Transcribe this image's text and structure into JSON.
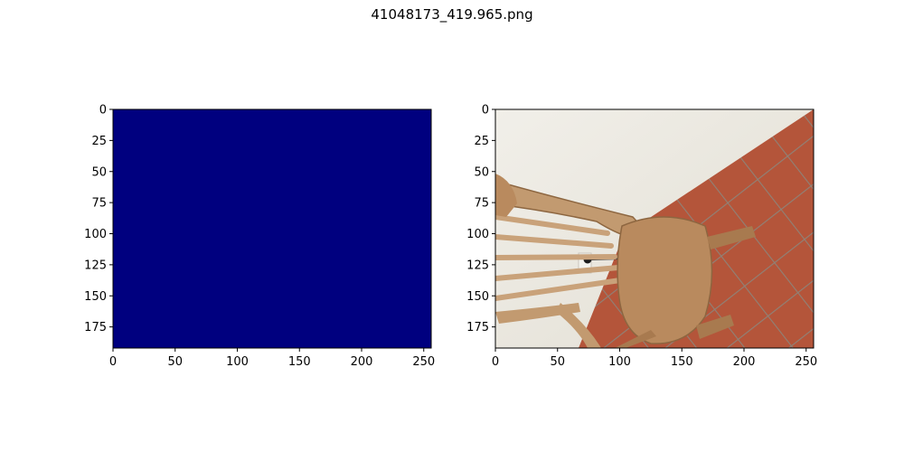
{
  "figure": {
    "title": "41048173_419.965.png"
  },
  "chart_data": [
    {
      "type": "heatmap",
      "title": "",
      "xlabel": "",
      "ylabel": "",
      "xlim": [
        0,
        256
      ],
      "ylim": [
        192,
        0
      ],
      "x_ticks": [
        0,
        50,
        100,
        150,
        200,
        250
      ],
      "y_ticks": [
        0,
        25,
        50,
        75,
        100,
        125,
        150,
        175
      ],
      "uniform_value": 0,
      "colormap": "jet",
      "fill_color": "#00007f",
      "grid": false
    },
    {
      "type": "image",
      "title": "",
      "xlabel": "",
      "ylabel": "",
      "xlim": [
        0,
        256
      ],
      "ylim": [
        192,
        0
      ],
      "x_ticks": [
        0,
        50,
        100,
        150,
        200,
        250
      ],
      "y_ticks": [
        0,
        25,
        50,
        75,
        100,
        125,
        150,
        175
      ],
      "content": "photo-of-wooden-windsor-chair-on-terracotta-tile-floor",
      "grid": false,
      "colors": {
        "wall": "#ece9e1",
        "tile": "#b4553a",
        "grout": "#8f8277",
        "wood": "#b98a5e",
        "wood_dark": "#8d6640"
      }
    }
  ]
}
